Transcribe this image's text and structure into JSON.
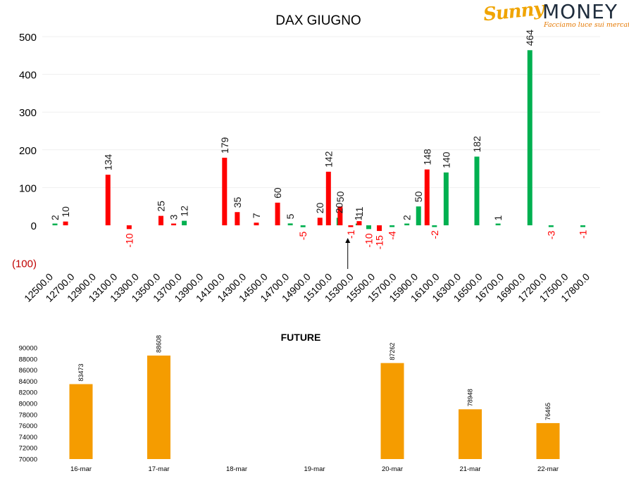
{
  "logo": {
    "brand_script": "Sunny",
    "brand_main": "MONEY",
    "tagline": "Facciamo luce sui mercati"
  },
  "chart_data": [
    {
      "type": "bar",
      "title": "DAX GIUGNO",
      "xlabel": "",
      "ylabel": "",
      "ylim": [
        -100,
        500
      ],
      "yticks": [
        "(100)",
        "0",
        "100",
        "200",
        "300",
        "400",
        "500"
      ],
      "categories": [
        "12500.0",
        "12700.0",
        "12900.0",
        "13100.0",
        "13300.0",
        "13500.0",
        "13700.0",
        "13900.0",
        "14100.0",
        "14300.0",
        "14500.0",
        "14700.0",
        "14900.0",
        "15100.0",
        "15300.0",
        "15500.0",
        "15700.0",
        "15900.0",
        "16100.0",
        "16300.0",
        "16500.0",
        "16700.0",
        "16900.0",
        "17200.0",
        "17500.0",
        "17800.0"
      ],
      "grid": true,
      "legend": "none",
      "colors": {
        "positive_series": "#00b050",
        "negative_series": "#ff0000"
      },
      "series": [
        {
          "color": "#00b050",
          "points": [
            {
              "x": "12500.0",
              "slot": 0.1,
              "value": 2,
              "label": "2"
            },
            {
              "x": "13700.0",
              "slot": 6.2,
              "value": 12,
              "label": "12"
            },
            {
              "x": "14700.0",
              "slot": 11.2,
              "value": 5,
              "label": "5"
            },
            {
              "x": "14700.0",
              "slot": 11.8,
              "value": -5,
              "label": "-5"
            },
            {
              "x": "15100.0",
              "slot": 13.5,
              "value": 20,
              "label": "20"
            },
            {
              "x": "15300.0",
              "slot": 14.4,
              "value": 1,
              "label": "1"
            },
            {
              "x": "15500.0",
              "slot": 14.9,
              "value": -10,
              "label": "-10"
            },
            {
              "x": "15700.0",
              "slot": 16.0,
              "value": -4,
              "label": "-4"
            },
            {
              "x": "15900.0",
              "slot": 16.7,
              "value": 2,
              "label": "2"
            },
            {
              "x": "15900.0",
              "slot": 17.25,
              "value": 50,
              "label": "50"
            },
            {
              "x": "16100.0",
              "slot": 18.0,
              "value": -2,
              "label": "-2"
            },
            {
              "x": "16300.0",
              "slot": 18.55,
              "value": 140,
              "label": "140"
            },
            {
              "x": "16500.0",
              "slot": 20.0,
              "value": 182,
              "label": "182"
            },
            {
              "x": "16700.0",
              "slot": 21.0,
              "value": 1,
              "label": "1"
            },
            {
              "x": "16900.0",
              "slot": 22.5,
              "value": 464,
              "label": "464"
            },
            {
              "x": "17200.0",
              "slot": 23.5,
              "value": -3,
              "label": "-3"
            },
            {
              "x": "17500.0",
              "slot": 25.0,
              "value": -1,
              "label": "-1"
            }
          ]
        },
        {
          "color": "#ff0000",
          "points": [
            {
              "x": "12700.0",
              "slot": 0.6,
              "value": 10,
              "label": "10"
            },
            {
              "x": "13100.0",
              "slot": 2.6,
              "value": 134,
              "label": "134"
            },
            {
              "x": "13300.0",
              "slot": 3.6,
              "value": -10,
              "label": "-10"
            },
            {
              "x": "13500.0",
              "slot": 5.1,
              "value": 25,
              "label": "25"
            },
            {
              "x": "13500.0",
              "slot": 5.7,
              "value": 3,
              "label": "3"
            },
            {
              "x": "14100.0",
              "slot": 8.1,
              "value": 179,
              "label": "179"
            },
            {
              "x": "14100.0",
              "slot": 8.7,
              "value": 35,
              "label": "35"
            },
            {
              "x": "14300.0",
              "slot": 9.6,
              "value": 7,
              "label": "7"
            },
            {
              "x": "14500.0",
              "slot": 10.6,
              "value": 60,
              "label": "60"
            },
            {
              "x": "14900.0",
              "slot": 12.6,
              "value": 20,
              "label": "20"
            },
            {
              "x": "15100.0",
              "slot": 13.0,
              "value": 142,
              "label": "142"
            },
            {
              "x": "15100.0",
              "slot": 13.55,
              "value": 50,
              "label": "50"
            },
            {
              "x": "15300.0",
              "slot": 14.05,
              "value": -1,
              "label": "-1"
            },
            {
              "x": "15300.0",
              "slot": 14.45,
              "value": 11,
              "label": "11"
            },
            {
              "x": "15500.0",
              "slot": 15.4,
              "value": -15,
              "label": "-15"
            },
            {
              "x": "16100.0",
              "slot": 17.65,
              "value": 148,
              "label": "148"
            }
          ]
        }
      ],
      "annotations": [
        {
          "type": "arrow",
          "at": "15300.0",
          "direction": "up"
        }
      ]
    },
    {
      "type": "bar",
      "title": "FUTURE",
      "xlabel": "",
      "ylabel": "",
      "ylim": [
        70000,
        90000
      ],
      "yticks": [
        "70000",
        "72000",
        "74000",
        "76000",
        "78000",
        "80000",
        "82000",
        "84000",
        "86000",
        "88000",
        "90000"
      ],
      "categories": [
        "16-mar",
        "17-mar",
        "18-mar",
        "19-mar",
        "20-mar",
        "21-mar",
        "22-mar"
      ],
      "values": [
        83473,
        88608,
        null,
        null,
        87262,
        78948,
        76465
      ],
      "labels": [
        "83473",
        "88608",
        "",
        "",
        "87262",
        "78948",
        "76465"
      ],
      "color": "#f59c00",
      "grid": false,
      "legend": "none"
    }
  ]
}
